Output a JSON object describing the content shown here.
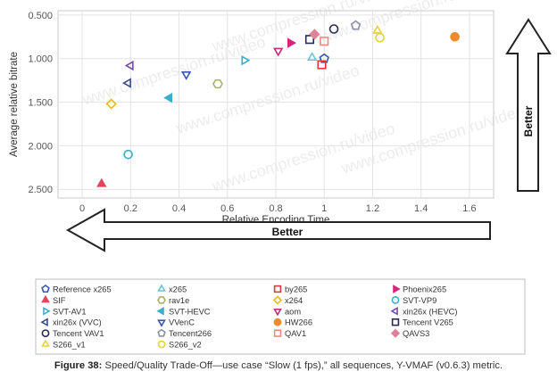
{
  "chart_data": {
    "type": "scatter",
    "xlabel": "Relative Encoding Time",
    "ylabel": "Average relative bitrate",
    "xlim": [
      -0.1,
      1.7
    ],
    "ylim": [
      2.6,
      0.45
    ],
    "y_inverted": true,
    "xticks": [
      "0",
      "0.2",
      "0.4",
      "0.6",
      "0.8",
      "1",
      "1.2",
      "1.4",
      "1.6"
    ],
    "yticks": [
      "0.500",
      "1.000",
      "1.500",
      "2.000",
      "2.500"
    ],
    "x_arrow_label": "Better",
    "y_arrow_label": "Better",
    "watermark": "www.compression.ru/video",
    "series": [
      {
        "name": "Reference x265",
        "marker": "pentagon",
        "filled": false,
        "color": "#3b56b0",
        "x": 1.0,
        "y": 1.0
      },
      {
        "name": "x265",
        "marker": "triangle-up",
        "filled": false,
        "color": "#6cc3d5",
        "x": 0.95,
        "y": 0.99
      },
      {
        "name": "by265",
        "marker": "square",
        "filled": false,
        "color": "#d63a3a",
        "x": 0.99,
        "y": 1.07
      },
      {
        "name": "Phoenix265",
        "marker": "triangle-right",
        "filled": true,
        "color": "#d6257a",
        "x": 0.86,
        "y": 0.82
      },
      {
        "name": "SIF",
        "marker": "triangle-up",
        "filled": true,
        "color": "#e0475c",
        "x": 0.08,
        "y": 2.44
      },
      {
        "name": "rav1e",
        "marker": "hexagon",
        "filled": false,
        "color": "#a5b465",
        "x": 0.56,
        "y": 1.29
      },
      {
        "name": "x264",
        "marker": "diamond",
        "filled": false,
        "color": "#e6b820",
        "x": 0.12,
        "y": 1.52
      },
      {
        "name": "SVT-VP9",
        "marker": "circle",
        "filled": false,
        "color": "#3aaeca",
        "x": 0.19,
        "y": 2.1
      },
      {
        "name": "SVT-AV1",
        "marker": "triangle-right",
        "filled": false,
        "color": "#3aaeca",
        "x": 0.67,
        "y": 1.02
      },
      {
        "name": "SVT-HEVC",
        "marker": "triangle-left",
        "filled": true,
        "color": "#3aaeca",
        "x": 0.36,
        "y": 1.45
      },
      {
        "name": "aom",
        "marker": "triangle-down",
        "filled": false,
        "color": "#c0307a",
        "x": 0.81,
        "y": 0.91
      },
      {
        "name": "xin26x (HEVC)",
        "marker": "triangle-left",
        "filled": false,
        "color": "#7a48a8",
        "x": 0.2,
        "y": 1.08
      },
      {
        "name": "xin26x (VVC)",
        "marker": "triangle-left",
        "filled": false,
        "color": "#3b4a8e",
        "x": 0.19,
        "y": 1.28
      },
      {
        "name": "VVenC",
        "marker": "triangle-down",
        "filled": false,
        "color": "#3b56b0",
        "x": 0.43,
        "y": 1.18
      },
      {
        "name": "HW266",
        "marker": "circle",
        "filled": true,
        "color": "#ef8a2a",
        "x": 1.54,
        "y": 0.75
      },
      {
        "name": "Tencent V265",
        "marker": "square",
        "filled": false,
        "color": "#2b2a55",
        "x": 0.94,
        "y": 0.78
      },
      {
        "name": "Tencent VAV1",
        "marker": "circle",
        "filled": false,
        "color": "#2b2a55",
        "x": 1.04,
        "y": 0.66
      },
      {
        "name": "Tencent266",
        "marker": "pentagon",
        "filled": false,
        "color": "#8a8fa8",
        "x": 1.13,
        "y": 0.62
      },
      {
        "name": "QAV1",
        "marker": "square",
        "filled": false,
        "color": "#ef8a7a",
        "x": 1.0,
        "y": 0.8
      },
      {
        "name": "QAVS3",
        "marker": "diamond",
        "filled": true,
        "color": "#e0829a",
        "x": 0.96,
        "y": 0.72
      },
      {
        "name": "S266_v1",
        "marker": "triangle-up",
        "filled": false,
        "color": "#e6d23a",
        "x": 1.22,
        "y": 0.68
      },
      {
        "name": "S266_v2",
        "marker": "circle",
        "filled": false,
        "color": "#e6d23a",
        "x": 1.23,
        "y": 0.76
      }
    ]
  },
  "caption": {
    "label": "Figure 38:",
    "text": " Speed/Quality Trade-Off—use case “Slow (1 fps),” all sequences, Y-VMAF (v0.6.3) metric."
  }
}
